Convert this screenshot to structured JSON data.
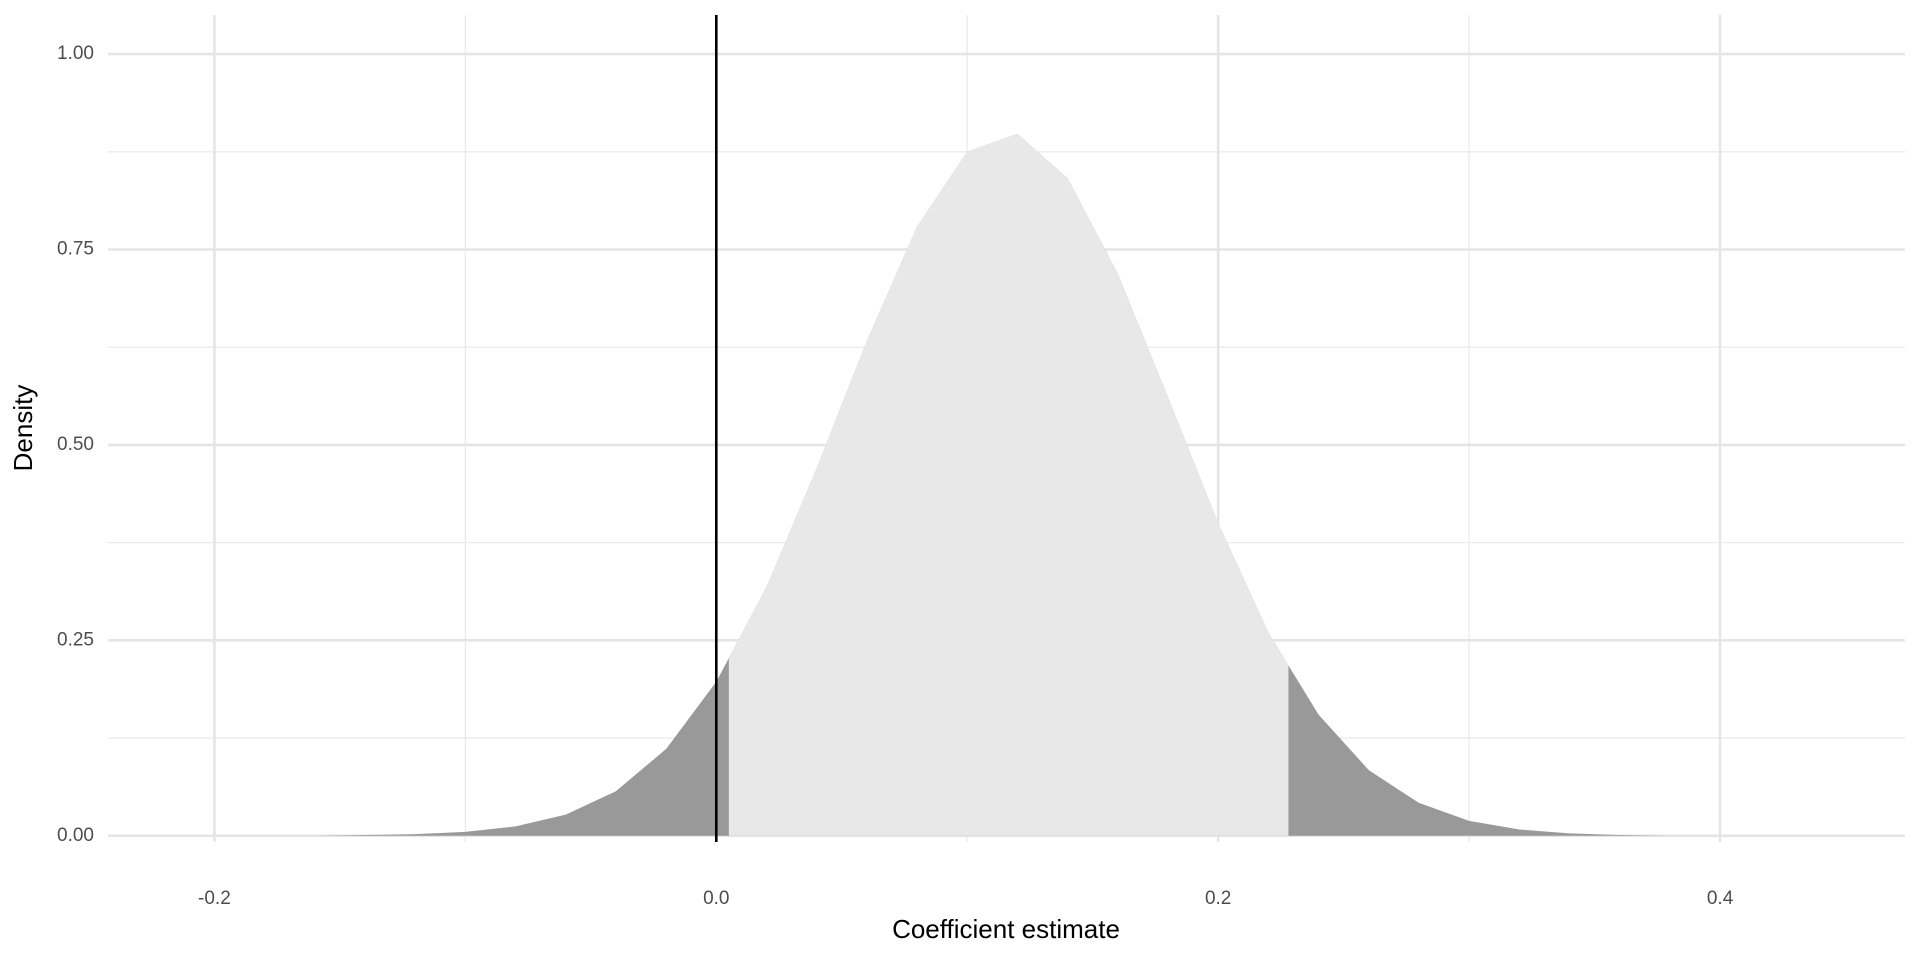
{
  "chart_data": {
    "type": "density",
    "x_label": "Coefficient estimate",
    "y_label": "Density",
    "x": [
      -0.2,
      -0.18,
      -0.16,
      -0.14,
      -0.12,
      -0.1,
      -0.08,
      -0.06,
      -0.04,
      -0.02,
      0,
      0.02,
      0.04,
      0.06,
      0.08,
      0.1,
      0.12,
      0.14,
      0.16,
      0.18,
      0.2,
      0.22,
      0.24,
      0.26,
      0.28,
      0.3,
      0.32,
      0.34,
      0.36,
      0.38,
      0.4
    ],
    "values": [
      0,
      0,
      0,
      0.001,
      0.002,
      0.005,
      0.012,
      0.027,
      0.057,
      0.111,
      0.197,
      0.318,
      0.47,
      0.633,
      0.779,
      0.875,
      0.898,
      0.841,
      0.719,
      0.561,
      0.4,
      0.26,
      0.155,
      0.084,
      0.042,
      0.019,
      0.008,
      0.003,
      0.001,
      0,
      0
    ],
    "tail_color": "#999999",
    "interval": [
      0.005,
      0.228
    ],
    "interval_color": "#e8e8e8",
    "vline": 0,
    "xlim": [
      -0.2424,
      0.4737
    ],
    "ylim": [
      -0.008,
      1.05
    ],
    "xticks": [
      {
        "value": -0.2,
        "label": "-0.2"
      },
      {
        "value": 0,
        "label": "0.0"
      },
      {
        "value": 0.2,
        "label": "0.2"
      },
      {
        "value": 0.4,
        "label": "0.4"
      }
    ],
    "yticks": [
      {
        "value": 0,
        "label": "0.00"
      },
      {
        "value": 0.25,
        "label": "0.25"
      },
      {
        "value": 0.5,
        "label": "0.50"
      },
      {
        "value": 0.75,
        "label": "0.75"
      },
      {
        "value": 1,
        "label": "1.00"
      }
    ],
    "x_minor_grid": [
      -0.1,
      0.1,
      0.3
    ],
    "y_minor_grid": [
      0.125,
      0.375,
      0.625,
      0.875
    ],
    "grid": true
  }
}
